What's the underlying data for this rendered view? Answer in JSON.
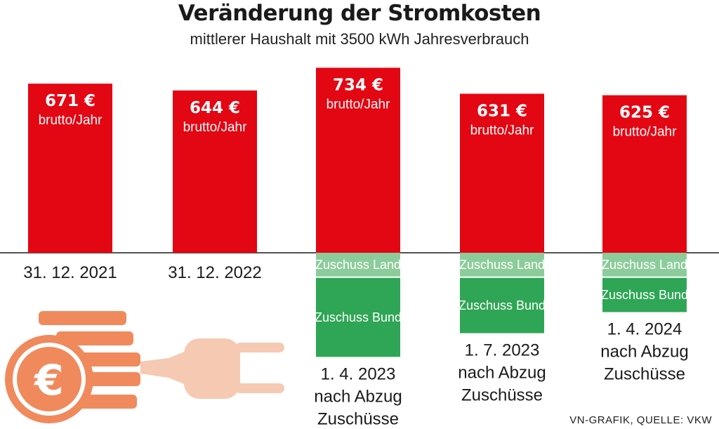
{
  "title": "Veränderung der Stromkosten",
  "subtitle": "mittlerer Haushalt mit 3500 kWh Jahresverbrauch",
  "source": "VN-GRAFIK, QUELLE: VKW",
  "colors": {
    "bar": "#e30613",
    "zuschuss_land": "#8ccc9a",
    "zuschuss_bund": "#2fa655",
    "icon": "#f08a5d",
    "plug": "#f6c9b3"
  },
  "icons": [
    "euro-coin-icon",
    "plug-icon"
  ],
  "chart_data": {
    "type": "bar",
    "categories": [
      [
        "31. 12. 2021"
      ],
      [
        "31. 12. 2022"
      ],
      [
        "1. 4. 2023",
        "nach Abzug",
        "Zuschüsse"
      ],
      [
        "1. 7. 2023",
        "nach Abzug",
        "Zuschüsse"
      ],
      [
        "1. 4. 2024",
        "nach Abzug",
        "Zuschüsse"
      ]
    ],
    "values": [
      671,
      644,
      734,
      631,
      625
    ],
    "value_labels": [
      "671 €",
      "644 €",
      "734 €",
      "631 €",
      "625 €"
    ],
    "unit_label": "brutto/Jahr",
    "ylim": [
      0,
      780
    ],
    "grid": false,
    "subsidies": [
      null,
      null,
      {
        "land_label": "Zuschuss Land",
        "land": 45,
        "bund_label": "Zuschuss Bund",
        "bund": 150
      },
      {
        "land_label": "Zuschuss Land",
        "land": 45,
        "bund_label": "Zuschuss Bund",
        "bund": 105
      },
      {
        "land_label": "Zuschuss Land",
        "land": 45,
        "bund_label": "Zuschuss Bund",
        "bund": 65
      }
    ]
  }
}
